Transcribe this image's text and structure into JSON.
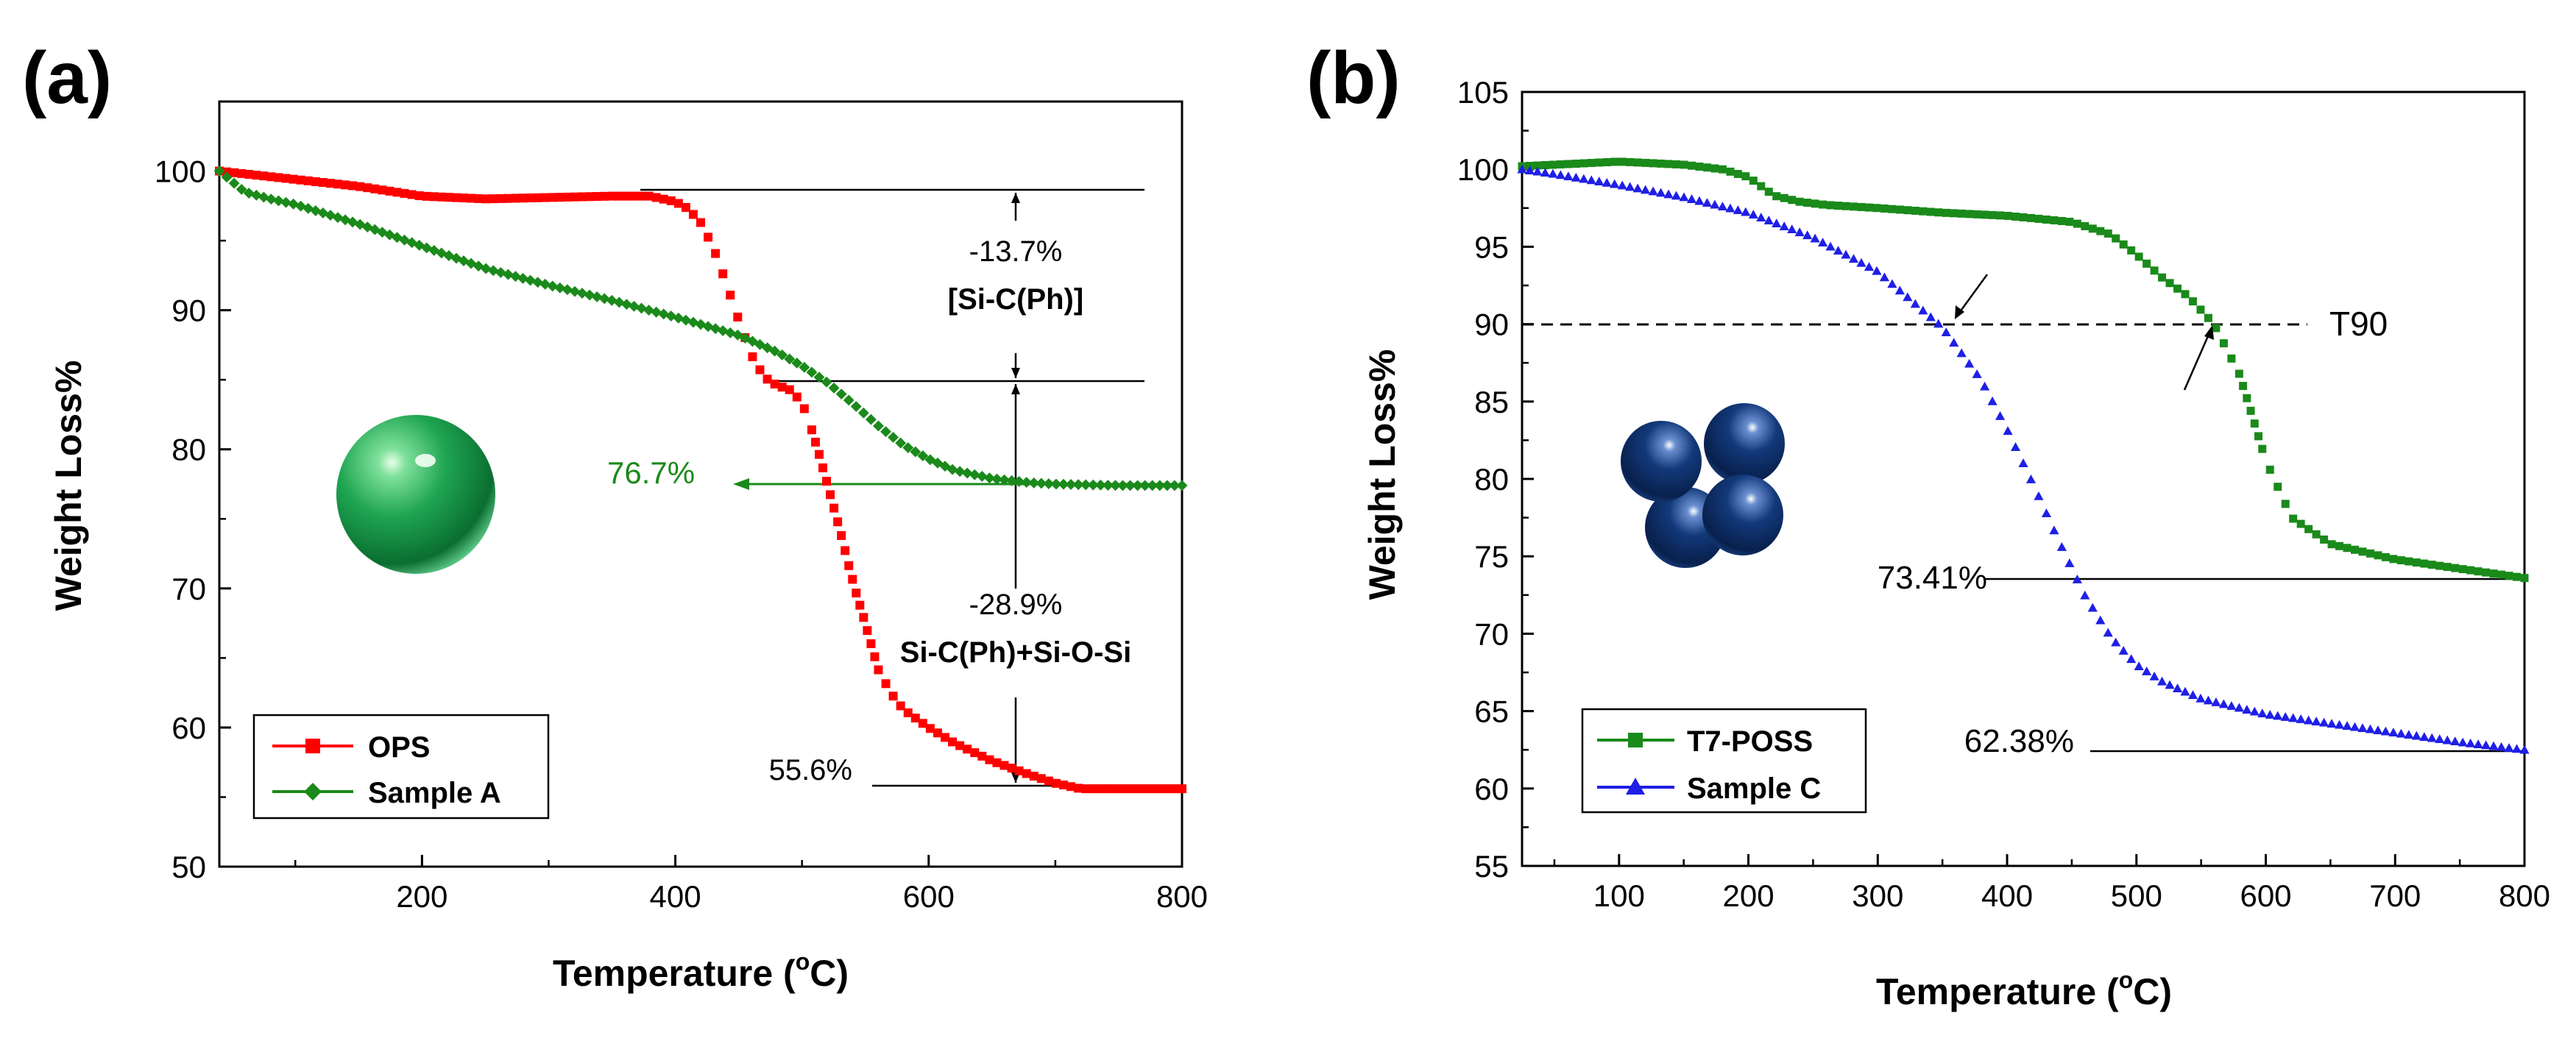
{
  "chart_data": [
    {
      "panel_label": "(a)",
      "type": "scatter",
      "title": "",
      "xlabel_prefix": "Temperature (",
      "xlabel_degree": "o",
      "xlabel_suffix": "C)",
      "ylabel": "Weight Loss%",
      "xlim": [
        40,
        800
      ],
      "ylim": [
        50,
        105
      ],
      "xticks": [
        200,
        400,
        600,
        800
      ],
      "yticks": [
        50,
        60,
        70,
        80,
        90,
        100
      ],
      "xtick_labels": [
        "200",
        "400",
        "600",
        "800"
      ],
      "ytick_labels": [
        "50",
        "60",
        "70",
        "80",
        "90",
        "100"
      ],
      "legend_position": "bottom-left",
      "series": [
        {
          "name": "OPS",
          "color": "#ff0000",
          "marker": "square",
          "x": [
            40,
            100,
            150,
            200,
            250,
            300,
            350,
            380,
            400,
            410,
            420,
            430,
            440,
            450,
            460,
            470,
            480,
            490,
            500,
            510,
            520,
            530,
            540,
            550,
            560,
            570,
            580,
            600,
            620,
            650,
            680,
            700,
            720,
            740,
            760,
            780,
            800
          ],
          "y": [
            100,
            99.4,
            98.9,
            98.2,
            98.0,
            98.1,
            98.2,
            98.2,
            97.8,
            97.3,
            96.3,
            94.5,
            92.0,
            89.3,
            86.8,
            85.2,
            84.6,
            84.3,
            83.4,
            80.8,
            77.5,
            74.2,
            70.5,
            67.5,
            64.2,
            62.5,
            61.3,
            60.0,
            58.9,
            57.6,
            56.6,
            56.0,
            55.6,
            55.6,
            55.6,
            55.6,
            55.6
          ]
        },
        {
          "name": "Sample A",
          "color": "#1a8a1a",
          "marker": "diamond",
          "x": [
            40,
            60,
            80,
            100,
            150,
            200,
            250,
            300,
            350,
            400,
            450,
            480,
            500,
            520,
            540,
            560,
            580,
            600,
            620,
            650,
            680,
            700,
            750,
            800
          ],
          "y": [
            100,
            98.5,
            98,
            97.6,
            96.2,
            94.6,
            93.0,
            91.8,
            90.7,
            89.5,
            88.2,
            87.0,
            86.0,
            84.8,
            83.3,
            81.7,
            80.3,
            79.3,
            78.5,
            77.9,
            77.6,
            77.5,
            77.4,
            77.4
          ]
        }
      ],
      "annotations": [
        {
          "text": "-13.7%",
          "x": 570,
          "y": 93.5
        },
        {
          "text": "[Si-C(Ph)]",
          "x": 570,
          "y": 90.0
        },
        {
          "text": "-28.9%",
          "x": 570,
          "y": 69.5
        },
        {
          "text": "Si-C(Ph)+Si-O-Si",
          "x": 570,
          "y": 65.1
        },
        {
          "text": "55.6%",
          "x": 440,
          "y": 56.2
        },
        {
          "text": "76.7%",
          "x": 268,
          "y": 78.0
        }
      ]
    },
    {
      "panel_label": "(b)",
      "type": "scatter",
      "title": "",
      "xlabel_prefix": "Temperature (",
      "xlabel_degree": "o",
      "xlabel_suffix": "C)",
      "ylabel": "Weight Loss%",
      "xlim": [
        25,
        800
      ],
      "ylim": [
        55,
        105
      ],
      "xticks": [
        100,
        200,
        300,
        400,
        500,
        600,
        700,
        800
      ],
      "yticks": [
        55,
        60,
        65,
        70,
        75,
        80,
        85,
        90,
        95,
        100,
        105
      ],
      "xtick_labels": [
        "100",
        "200",
        "300",
        "400",
        "500",
        "600",
        "700",
        "800"
      ],
      "ytick_labels": [
        "55",
        "60",
        "65",
        "70",
        "75",
        "80",
        "85",
        "90",
        "95",
        "100",
        "105"
      ],
      "legend_position": "bottom-left",
      "series": [
        {
          "name": "T7-POSS",
          "color": "#1a8a1a",
          "marker": "square",
          "x": [
            25,
            50,
            100,
            150,
            180,
            200,
            220,
            240,
            260,
            300,
            350,
            400,
            450,
            480,
            500,
            520,
            540,
            560,
            580,
            600,
            620,
            650,
            700,
            750,
            800
          ],
          "y": [
            100.2,
            100.3,
            100.5,
            100.3,
            100.0,
            99.5,
            98.3,
            97.9,
            97.7,
            97.5,
            97.2,
            97.0,
            96.6,
            95.8,
            94.5,
            93.0,
            91.8,
            90.0,
            86.7,
            81.2,
            77.5,
            75.8,
            74.8,
            74.2,
            73.6
          ]
        },
        {
          "name": "Sample C",
          "color": "#1f1fe6",
          "marker": "triangle",
          "x": [
            25,
            50,
            100,
            150,
            200,
            250,
            300,
            350,
            380,
            400,
            420,
            440,
            460,
            480,
            500,
            520,
            550,
            600,
            650,
            700,
            750,
            800
          ],
          "y": [
            100,
            99.7,
            99,
            98.2,
            97.2,
            95.6,
            93.4,
            89.8,
            86.4,
            83.2,
            79.7,
            76.0,
            72.5,
            69.8,
            68.0,
            66.9,
            65.8,
            64.8,
            64.2,
            63.6,
            63.0,
            62.5
          ]
        }
      ],
      "reference_line": {
        "label": "T90",
        "y": 90
      },
      "annotations": [
        {
          "text": "73.41%",
          "x": 342,
          "y": 73.7
        },
        {
          "text": "62.38%",
          "x": 345,
          "y": 62.6
        }
      ]
    }
  ]
}
